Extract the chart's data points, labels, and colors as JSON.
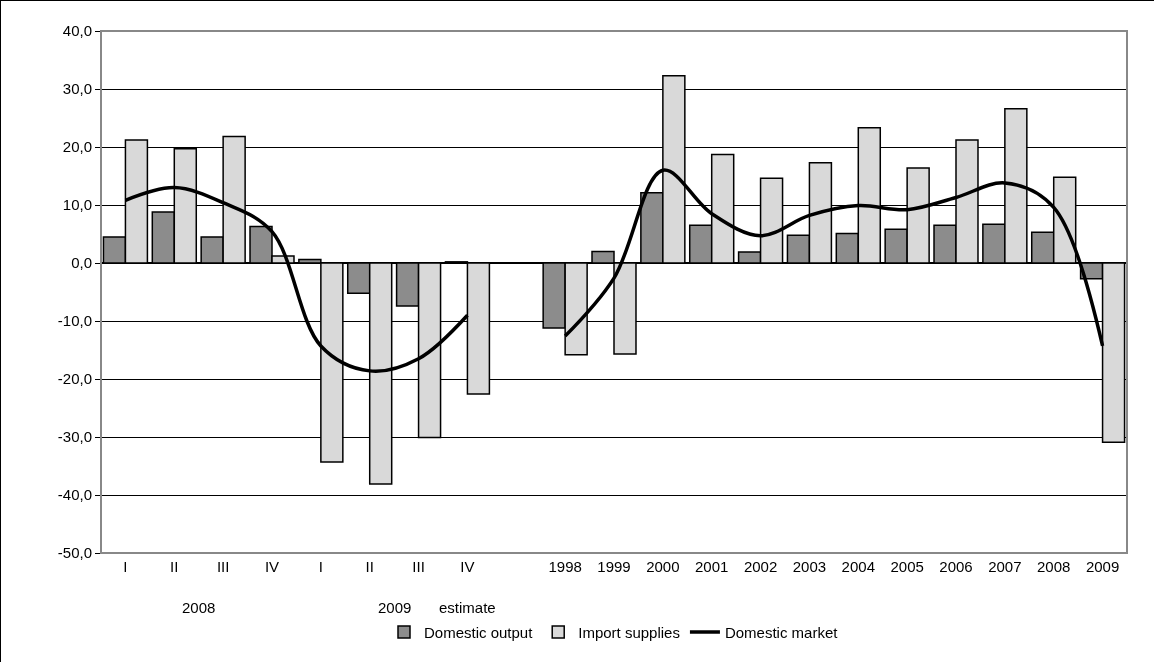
{
  "chart_data": {
    "type": "bar",
    "categories": [
      "I",
      "II",
      "III",
      "IV",
      "I",
      "II",
      "III",
      "IV",
      null,
      "1998",
      "1999",
      "2000",
      "2001",
      "2002",
      "2003",
      "2004",
      "2005",
      "2006",
      "2007",
      "2008",
      "2009"
    ],
    "series": [
      {
        "name": "Domestic output",
        "color": "#8c8c8c",
        "values": [
          4.5,
          8.8,
          4.5,
          6.3,
          0.6,
          -5.2,
          -7.4,
          0.2,
          null,
          -11.2,
          2.0,
          12.1,
          6.5,
          1.9,
          4.8,
          5.1,
          5.8,
          6.5,
          6.7,
          5.3,
          -2.7
        ]
      },
      {
        "name": "Import supplies",
        "color": "#d9d9d9",
        "values": [
          21.2,
          19.7,
          21.8,
          1.2,
          -34.3,
          -38.1,
          -30.1,
          -22.6,
          null,
          -15.8,
          -15.7,
          32.3,
          18.7,
          14.6,
          17.3,
          23.3,
          16.4,
          21.2,
          26.6,
          14.8,
          -30.9
        ]
      },
      {
        "name": "Domestic market",
        "type": "line",
        "color": "#000000",
        "values": [
          10.8,
          13.0,
          10.4,
          5.4,
          -14.3,
          -18.6,
          -16.5,
          -9.0,
          null,
          -12.6,
          -2.6,
          16.0,
          8.5,
          4.7,
          8.2,
          9.9,
          9.2,
          11.3,
          13.8,
          9.6,
          -14.3
        ]
      }
    ],
    "annotations": [
      "2008",
      "2009",
      "estimate"
    ],
    "ylim": [
      -50,
      40
    ],
    "yticks": [
      {
        "value": -50,
        "label": "-50,0"
      },
      {
        "value": -40,
        "label": "-40,0"
      },
      {
        "value": -30,
        "label": "-30,0"
      },
      {
        "value": -20,
        "label": "-20,0"
      },
      {
        "value": -10,
        "label": "-10,0"
      },
      {
        "value": 0,
        "label": "0,0"
      },
      {
        "value": 10,
        "label": "10,0"
      },
      {
        "value": 20,
        "label": "20,0"
      },
      {
        "value": 30,
        "label": "30,0"
      },
      {
        "value": 40,
        "label": "40,0"
      }
    ],
    "grid": "y",
    "legend": "bottom",
    "marker": "none",
    "line_style": "solid"
  }
}
